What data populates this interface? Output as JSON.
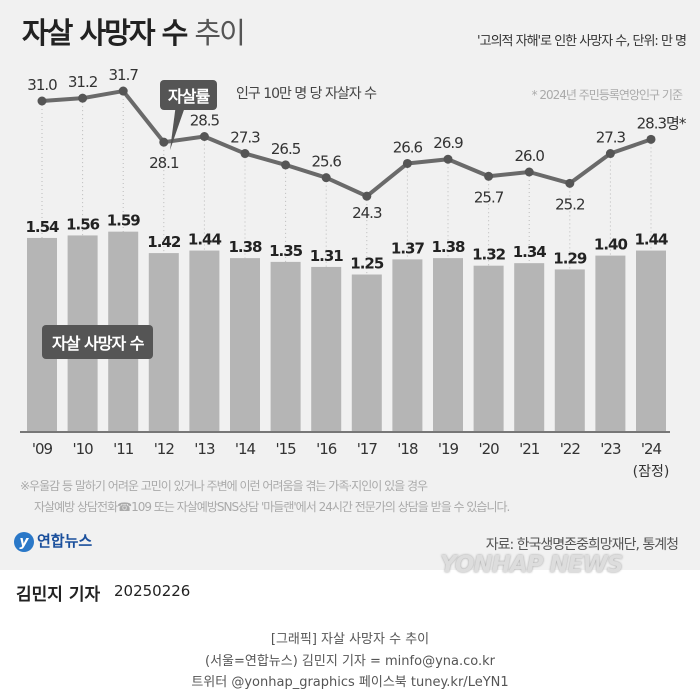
{
  "header": {
    "title_bold": "자살 사망자 수",
    "title_light": "추이",
    "subtitle": "'고의적 자해'로 인한 사망자 수, 단위: 만 명"
  },
  "chart_data": {
    "type": "bar+line",
    "categories": [
      "'09",
      "'10",
      "'11",
      "'12",
      "'13",
      "'14",
      "'15",
      "'16",
      "'17",
      "'18",
      "'19",
      "'20",
      "'21",
      "'22",
      "'23",
      "'24"
    ],
    "provisional_label": "(잠정)",
    "series": [
      {
        "name": "자살 사망자 수",
        "type": "bar",
        "unit": "만 명",
        "values": [
          1.54,
          1.56,
          1.59,
          1.42,
          1.44,
          1.38,
          1.35,
          1.31,
          1.25,
          1.37,
          1.38,
          1.32,
          1.34,
          1.29,
          1.4,
          1.44
        ],
        "color": "#b5b5b5"
      },
      {
        "name": "자살률",
        "type": "line",
        "values": [
          31.0,
          31.2,
          31.7,
          28.1,
          28.5,
          27.3,
          26.5,
          25.6,
          24.3,
          26.6,
          26.9,
          25.7,
          26.0,
          25.2,
          27.3,
          28.3
        ],
        "color": "#6a6a6a",
        "last_label_suffix": "명*"
      }
    ],
    "rate_badge": "자살률",
    "rate_desc": "인구 10만 명 당 자살자 수",
    "base_note": "* 2024년 주민등록연앙인구 기준",
    "deaths_badge": "자살 사망자 수"
  },
  "notes": [
    "※우울감 등 말하기 어려운 고민이 있거나 주변에 이런 어려움을 겪는 가족·지인이 있을 경우",
    "자살예방 상담전화☎109 또는 자살예방SNS상담 '마들랜'에서 24시간 전문가의 상담을 받을 수 있습니다."
  ],
  "logo": "연합뉴스",
  "source": "자료: 한국생명존중희망재단, 통계청",
  "watermark": "YONHAP NEWS",
  "author": "김민지 기자",
  "date": "20250226",
  "caption": [
    "[그래픽] 자살 사망자 수 추이",
    "(서울=연합뉴스) 김민지 기자 = minfo@yna.co.kr",
    "트위터 @yonhap_graphics 페이스북 tuney.kr/LeYN1"
  ]
}
